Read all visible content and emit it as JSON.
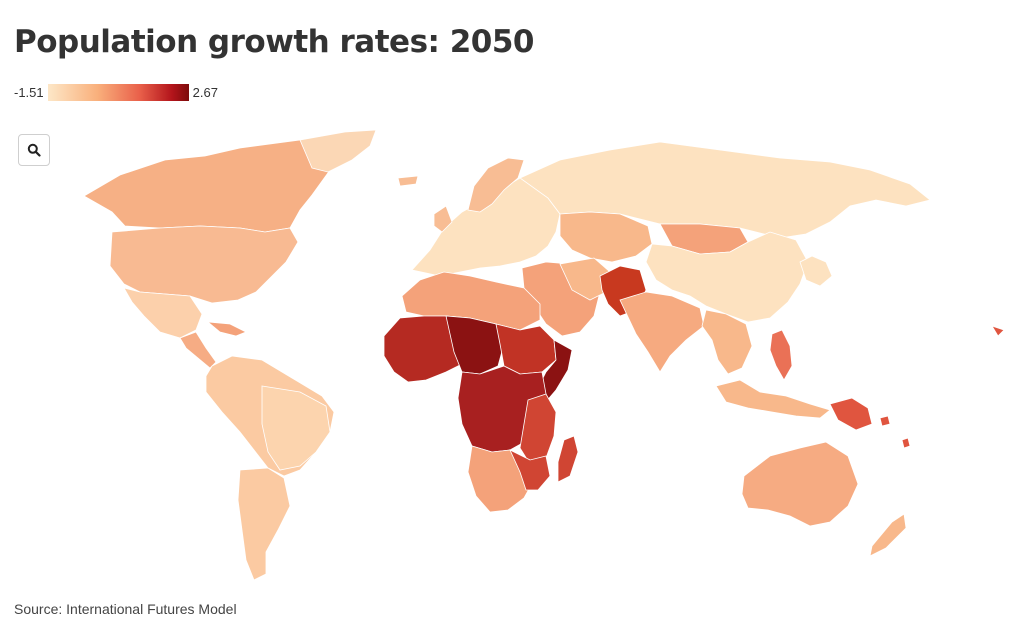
{
  "title": "Population growth rates: 2050",
  "legend": {
    "min_label": "-1.51",
    "max_label": "2.67"
  },
  "source": "Source: International Futures Model",
  "zoom_icon": "search-icon",
  "colors": {
    "very_low": "#fde2c0",
    "low": "#fcd3a8",
    "mid_low": "#f8b88b",
    "mid": "#f4a27a",
    "mid_high": "#e9664f",
    "high": "#d04533",
    "very_high": "#b52a22",
    "max": "#8b1212"
  }
}
